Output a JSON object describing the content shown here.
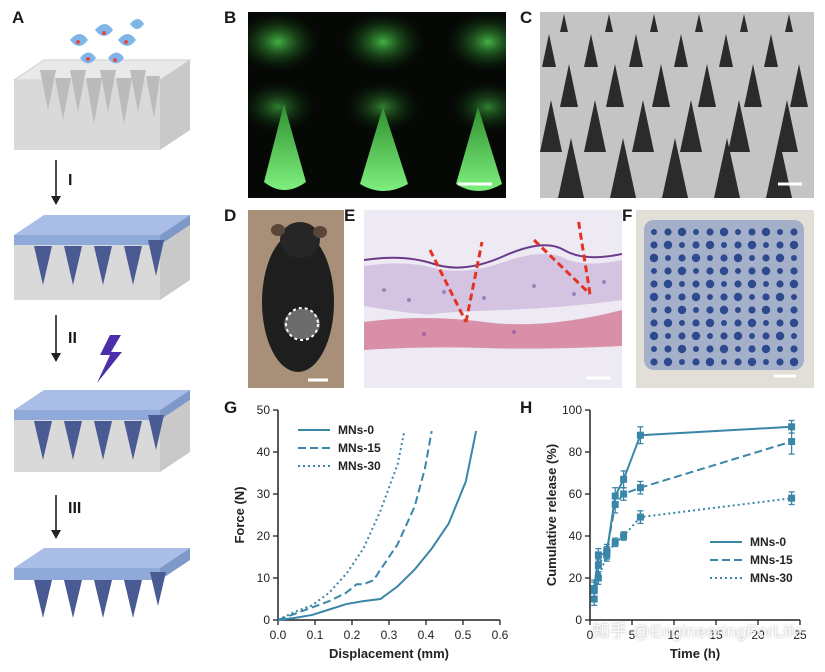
{
  "panels": {
    "a": "A",
    "b": "B",
    "c": "C",
    "d": "D",
    "e": "E",
    "f": "F",
    "g": "G",
    "h": "H"
  },
  "steps": {
    "s1": "I",
    "s2": "II",
    "s3": "III"
  },
  "watermark": "知乎 @EngineeringForLife",
  "colors": {
    "line": "#3a86a8",
    "accent_red": "#e53323",
    "layer_blue": "#8fa9d8",
    "gel": "#3a8a3a"
  },
  "chart_data": [
    {
      "panel": "G",
      "type": "line",
      "xlabel": "Displacement (mm)",
      "ylabel": "Force (N)",
      "xlim": [
        0,
        0.65
      ],
      "ylim": [
        0,
        50
      ],
      "xticks": [
        "0.0",
        "0.1",
        "0.2",
        "0.3",
        "0.4",
        "0.5",
        "0.6"
      ],
      "yticks": [
        "0",
        "10",
        "20",
        "30",
        "40",
        "50"
      ],
      "legend_position": "top-left",
      "series": [
        {
          "name": "MNs-0",
          "style": "solid",
          "x": [
            0.0,
            0.05,
            0.1,
            0.15,
            0.2,
            0.25,
            0.3,
            0.35,
            0.4,
            0.45,
            0.5,
            0.55,
            0.58
          ],
          "y": [
            0,
            0.5,
            1.2,
            2.5,
            3.8,
            4.5,
            5.0,
            8,
            12,
            17,
            23,
            33,
            45
          ]
        },
        {
          "name": "MNs-15",
          "style": "dashed",
          "x": [
            0.0,
            0.05,
            0.1,
            0.15,
            0.2,
            0.23,
            0.25,
            0.28,
            0.3,
            0.35,
            0.4,
            0.43,
            0.45
          ],
          "y": [
            0,
            1.5,
            3,
            4.5,
            6.5,
            8.5,
            8.5,
            9.5,
            12,
            18,
            27,
            36,
            45
          ]
        },
        {
          "name": "MNs-30",
          "style": "dotted",
          "x": [
            0.0,
            0.05,
            0.1,
            0.15,
            0.2,
            0.25,
            0.3,
            0.35,
            0.37
          ],
          "y": [
            0,
            2,
            3.5,
            6.5,
            11,
            17,
            26,
            37,
            45
          ]
        }
      ]
    },
    {
      "panel": "H",
      "type": "line",
      "xlabel": "Time (h)",
      "ylabel": "Cumulative release (%)",
      "xlim": [
        0,
        25
      ],
      "ylim": [
        0,
        100
      ],
      "xticks": [
        "0",
        "5",
        "10",
        "15",
        "20",
        "25"
      ],
      "yticks": [
        "0",
        "20",
        "40",
        "60",
        "80",
        "100"
      ],
      "legend_position": "bottom-right",
      "series": [
        {
          "name": "MNs-0",
          "style": "solid",
          "x": [
            0.5,
            1,
            2,
            3,
            4,
            6,
            24
          ],
          "y": [
            15,
            31,
            32,
            59,
            67,
            88,
            92
          ],
          "err": [
            4,
            3,
            3,
            4,
            4,
            4,
            3
          ]
        },
        {
          "name": "MNs-15",
          "style": "dashed",
          "x": [
            0.5,
            1,
            2,
            3,
            4,
            6,
            24
          ],
          "y": [
            14,
            26,
            33,
            55,
            60,
            63,
            85
          ],
          "err": [
            4,
            3,
            3,
            4,
            3,
            3,
            6
          ]
        },
        {
          "name": "MNs-30",
          "style": "dotted",
          "x": [
            0.5,
            1,
            2,
            3,
            4,
            6,
            24
          ],
          "y": [
            10,
            20,
            31,
            37,
            40,
            49,
            58
          ],
          "err": [
            3,
            3,
            3,
            2,
            2,
            3,
            3
          ]
        }
      ]
    }
  ]
}
